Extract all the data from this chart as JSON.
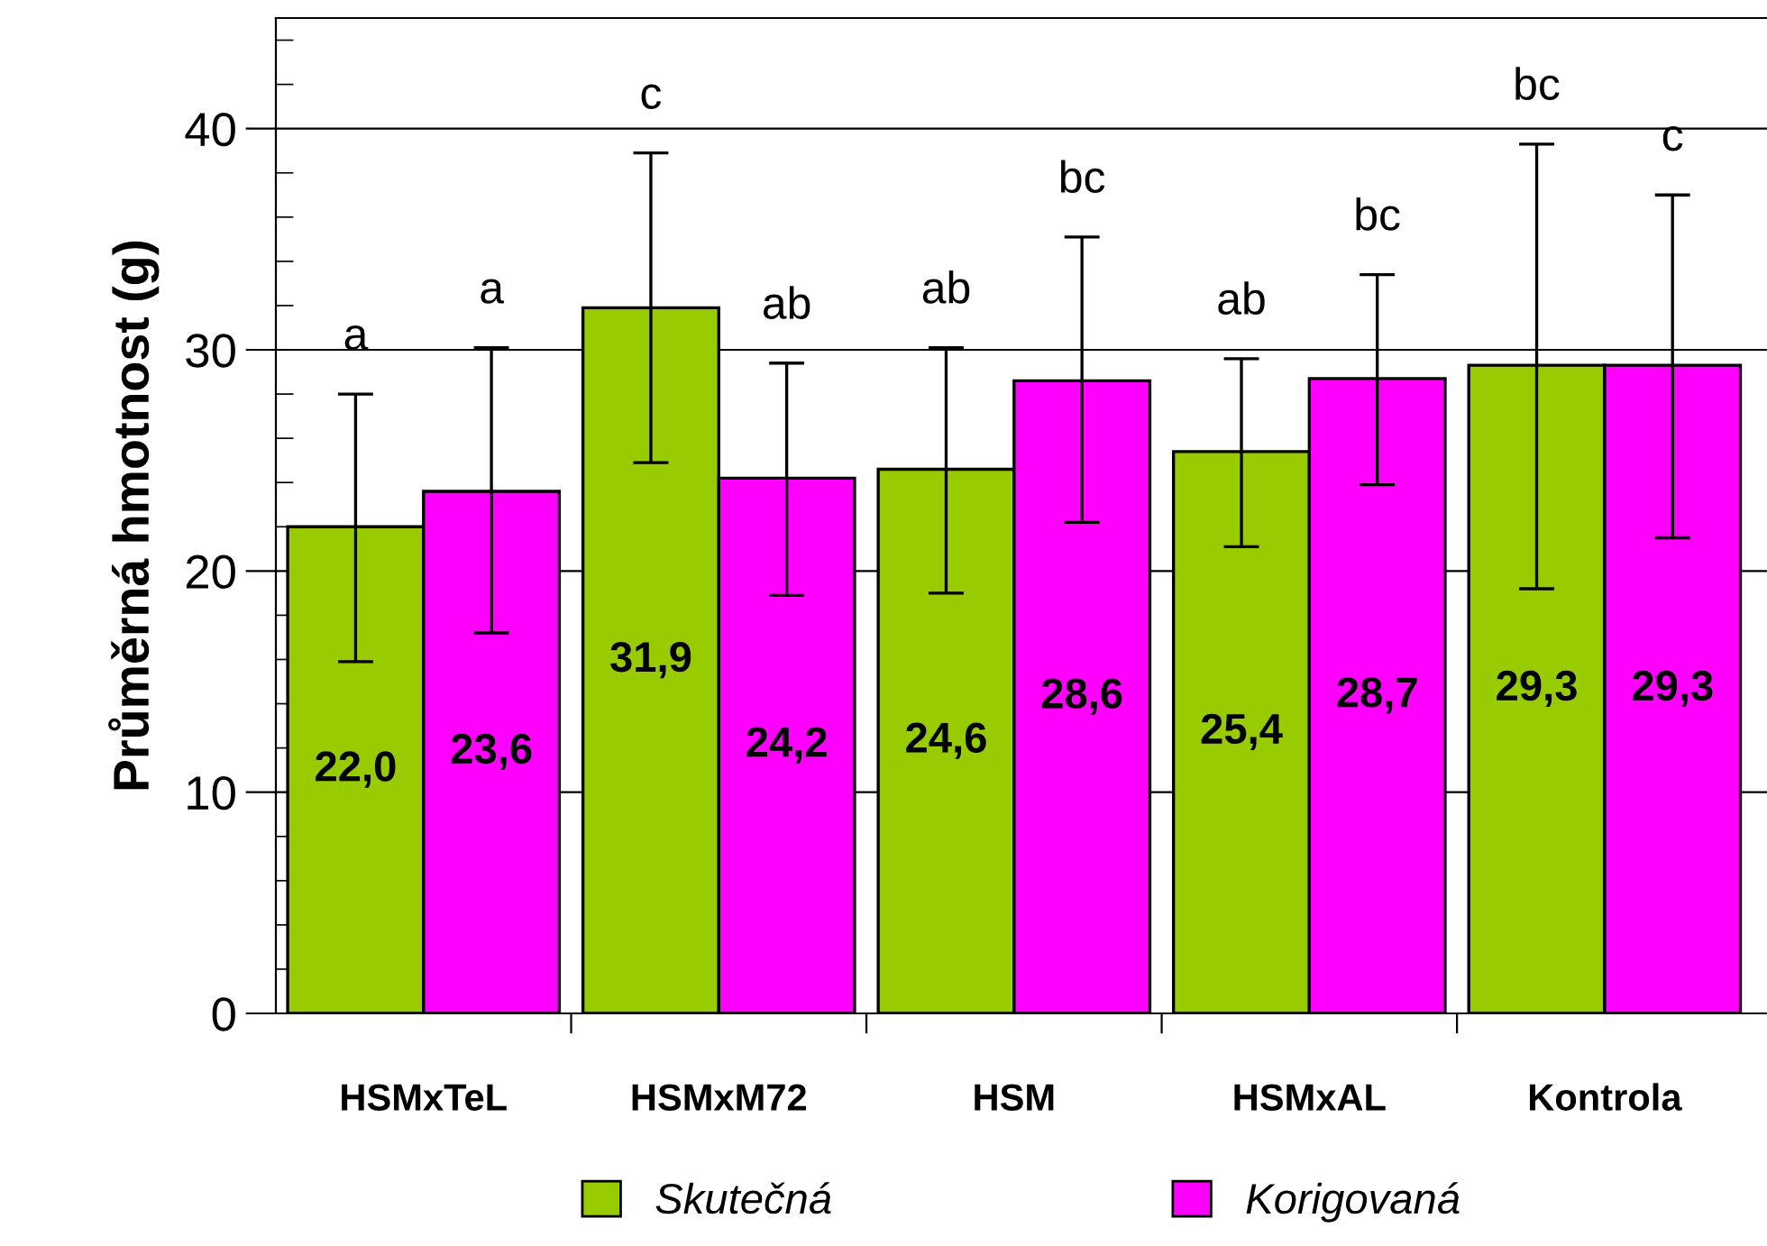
{
  "chart_data": {
    "type": "bar",
    "ylabel": "Průměrná hmotnost (g)",
    "categories": [
      "HSMxTeL",
      "HSMxM72",
      "HSM",
      "HSMxAL",
      "Kontrola"
    ],
    "series": [
      {
        "name": "Skutečná",
        "color": "#99cc00",
        "values": [
          22.0,
          31.9,
          24.6,
          25.4,
          29.3
        ],
        "value_labels": [
          "22,0",
          "31,9",
          "24,6",
          "25,4",
          "29,3"
        ],
        "errors": [
          [
            15.9,
            28.0
          ],
          [
            24.9,
            38.9
          ],
          [
            19.0,
            30.1
          ],
          [
            21.1,
            29.6
          ],
          [
            19.2,
            39.3
          ]
        ]
      },
      {
        "name": "Korigovaná",
        "color": "#ff00ff",
        "values": [
          23.6,
          24.2,
          28.6,
          28.7,
          29.3
        ],
        "value_labels": [
          "23,6",
          "24,2",
          "28,6",
          "28,7",
          "29,3"
        ],
        "errors": [
          [
            17.2,
            30.1
          ],
          [
            18.9,
            29.4
          ],
          [
            22.2,
            35.1
          ],
          [
            23.9,
            33.4
          ],
          [
            21.5,
            37.0
          ]
        ]
      }
    ],
    "annotations": [
      "a",
      "a",
      "c",
      "ab",
      "ab",
      "bc",
      "ab",
      "bc",
      "bc",
      "c"
    ],
    "ylim": [
      0,
      45
    ],
    "yticks": [
      0,
      10,
      20,
      30,
      40
    ],
    "grid": "y",
    "legend": "bottom"
  }
}
